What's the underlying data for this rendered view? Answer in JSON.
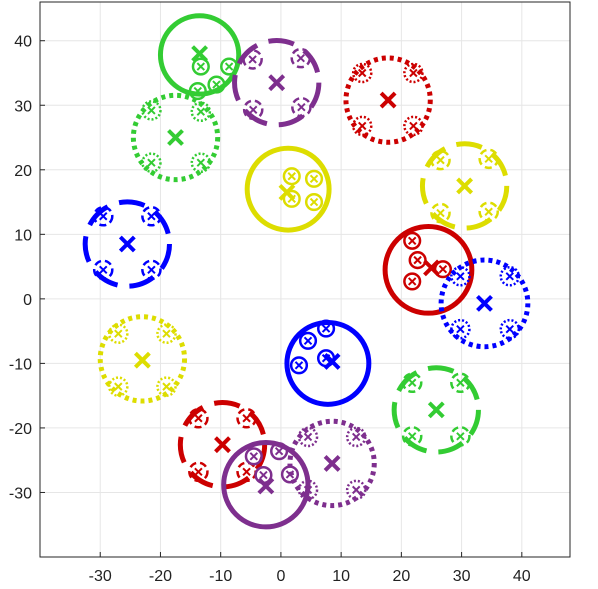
{
  "chart_data": {
    "type": "scatter",
    "title": "",
    "xlabel": "",
    "ylabel": "",
    "xlim": [
      -40,
      48
    ],
    "ylim": [
      -40,
      46
    ],
    "xticks": [
      -30,
      -20,
      -10,
      0,
      10,
      20,
      30,
      40
    ],
    "yticks": [
      -30,
      -20,
      -10,
      0,
      10,
      20,
      30,
      40
    ],
    "xtick_labels": [
      "-30",
      "-20",
      "-10",
      "0",
      "10",
      "20",
      "30",
      "40"
    ],
    "ytick_labels": [
      "-30",
      "-20",
      "-10",
      "0",
      "10",
      "20",
      "30",
      "40"
    ],
    "grid": true,
    "legend": "none",
    "colors": {
      "green": "#33cc33",
      "purple": "#7e2f8e",
      "red": "#cc0000",
      "yellow": "#dddd00",
      "blue": "#0000ff"
    },
    "clusters": [
      {
        "color": "green",
        "style": "solid",
        "center": [
          -13.5,
          37.8
        ],
        "radius": 6.5,
        "marker": [
          -13.5,
          38.0
        ],
        "sub": [
          {
            "center": [
              -13.3,
              36.0
            ],
            "radius": 1.3
          },
          {
            "center": [
              -10.7,
              33.2
            ],
            "radius": 1.3
          },
          {
            "center": [
              -8.6,
              36.0
            ],
            "radius": 1.3
          },
          {
            "center": [
              -13.8,
              32.2
            ],
            "radius": 1.3
          }
        ],
        "sub_style": "solid"
      },
      {
        "color": "purple",
        "style": "dashed",
        "center": [
          -0.7,
          33.5
        ],
        "radius": 7.0,
        "marker": [
          -0.7,
          33.5
        ],
        "sub": [
          {
            "center": [
              -4.7,
              37.1
            ],
            "radius": 1.5
          },
          {
            "center": [
              3.3,
              37.3
            ],
            "radius": 1.5
          },
          {
            "center": [
              -4.6,
              29.3
            ],
            "radius": 1.5
          },
          {
            "center": [
              3.4,
              29.7
            ],
            "radius": 1.5
          }
        ],
        "sub_style": "dashed"
      },
      {
        "color": "red",
        "style": "dotted",
        "center": [
          17.8,
          30.8
        ],
        "radius": 7.0,
        "marker": [
          17.8,
          30.8
        ],
        "sub": [
          {
            "center": [
              13.5,
              35.0
            ],
            "radius": 1.5
          },
          {
            "center": [
              22.0,
              35.0
            ],
            "radius": 1.5
          },
          {
            "center": [
              13.5,
              26.8
            ],
            "radius": 1.5
          },
          {
            "center": [
              22.0,
              26.8
            ],
            "radius": 1.5
          }
        ],
        "sub_style": "dotted"
      },
      {
        "color": "green",
        "style": "dotted",
        "center": [
          -17.5,
          25.0
        ],
        "radius": 7.0,
        "marker": [
          -17.5,
          25.0
        ],
        "sub": [
          {
            "center": [
              -21.5,
              29.2
            ],
            "radius": 1.5
          },
          {
            "center": [
              -13.3,
              29.0
            ],
            "radius": 1.5
          },
          {
            "center": [
              -21.5,
              21.1
            ],
            "radius": 1.5
          },
          {
            "center": [
              -13.3,
              21.1
            ],
            "radius": 1.5
          }
        ],
        "sub_style": "dotted"
      },
      {
        "color": "yellow",
        "style": "solid",
        "center": [
          1.2,
          17.0
        ],
        "radius": 6.8,
        "marker": [
          1.0,
          16.5
        ],
        "sub": [
          {
            "center": [
              1.8,
              19.0
            ],
            "radius": 1.3
          },
          {
            "center": [
              5.5,
              18.6
            ],
            "radius": 1.3
          },
          {
            "center": [
              1.8,
              15.5
            ],
            "radius": 1.3
          },
          {
            "center": [
              5.5,
              15.0
            ],
            "radius": 1.3
          }
        ],
        "sub_style": "solid"
      },
      {
        "color": "yellow",
        "style": "dashed",
        "center": [
          30.5,
          17.5
        ],
        "radius": 7.0,
        "marker": [
          30.5,
          17.5
        ],
        "sub": [
          {
            "center": [
              26.5,
              21.5
            ],
            "radius": 1.5
          },
          {
            "center": [
              34.5,
              21.7
            ],
            "radius": 1.5
          },
          {
            "center": [
              26.5,
              13.3
            ],
            "radius": 1.5
          },
          {
            "center": [
              34.5,
              13.5
            ],
            "radius": 1.5
          }
        ],
        "sub_style": "dashed"
      },
      {
        "color": "blue",
        "style": "dashed",
        "center": [
          -25.5,
          8.5
        ],
        "radius": 7.0,
        "marker": [
          -25.5,
          8.5
        ],
        "sub": [
          {
            "center": [
              -29.5,
              12.8
            ],
            "radius": 1.5
          },
          {
            "center": [
              -21.5,
              12.8
            ],
            "radius": 1.5
          },
          {
            "center": [
              -29.5,
              4.5
            ],
            "radius": 1.5
          },
          {
            "center": [
              -21.5,
              4.5
            ],
            "radius": 1.5
          }
        ],
        "sub_style": "dashed"
      },
      {
        "color": "red",
        "style": "solid",
        "center": [
          24.5,
          4.5
        ],
        "radius": 7.2,
        "marker": [
          25.0,
          4.8
        ],
        "sub": [
          {
            "center": [
              21.8,
              9.0
            ],
            "radius": 1.3
          },
          {
            "center": [
              22.7,
              6.0
            ],
            "radius": 1.3
          },
          {
            "center": [
              21.8,
              2.7
            ],
            "radius": 1.3
          },
          {
            "center": [
              26.9,
              4.6
            ],
            "radius": 1.3
          }
        ],
        "sub_style": "solid"
      },
      {
        "color": "blue",
        "style": "dotted",
        "center": [
          33.8,
          -0.7
        ],
        "radius": 7.2,
        "marker": [
          33.8,
          -0.7
        ],
        "sub": [
          {
            "center": [
              29.8,
              3.5
            ],
            "radius": 1.5
          },
          {
            "center": [
              38.0,
              3.5
            ],
            "radius": 1.5
          },
          {
            "center": [
              29.8,
              -4.7
            ],
            "radius": 1.5
          },
          {
            "center": [
              38.0,
              -4.7
            ],
            "radius": 1.5
          }
        ],
        "sub_style": "dotted"
      },
      {
        "color": "yellow",
        "style": "dotted",
        "center": [
          -23.0,
          -9.3
        ],
        "radius": 7.0,
        "marker": [
          -23.0,
          -9.5
        ],
        "sub": [
          {
            "center": [
              -27.0,
              -5.4
            ],
            "radius": 1.5
          },
          {
            "center": [
              -19.0,
              -5.4
            ],
            "radius": 1.5
          },
          {
            "center": [
              -27.0,
              -13.6
            ],
            "radius": 1.5
          },
          {
            "center": [
              -19.0,
              -13.6
            ],
            "radius": 1.5
          }
        ],
        "sub_style": "dotted"
      },
      {
        "color": "blue",
        "style": "solid",
        "center": [
          7.8,
          -10.0
        ],
        "radius": 6.8,
        "marker": [
          8.5,
          -9.7
        ],
        "sub": [
          {
            "center": [
              4.5,
              -6.5
            ],
            "radius": 1.3
          },
          {
            "center": [
              7.5,
              -4.6
            ],
            "radius": 1.3
          },
          {
            "center": [
              7.5,
              -9.2
            ],
            "radius": 1.3
          },
          {
            "center": [
              3.0,
              -10.3
            ],
            "radius": 1.3
          }
        ],
        "sub_style": "solid"
      },
      {
        "color": "green",
        "style": "dashed",
        "center": [
          25.8,
          -17.2
        ],
        "radius": 7.0,
        "marker": [
          25.8,
          -17.2
        ],
        "sub": [
          {
            "center": [
              21.8,
              -13.0
            ],
            "radius": 1.5
          },
          {
            "center": [
              29.8,
              -13.0
            ],
            "radius": 1.5
          },
          {
            "center": [
              21.8,
              -21.3
            ],
            "radius": 1.5
          },
          {
            "center": [
              29.8,
              -21.3
            ],
            "radius": 1.5
          }
        ],
        "sub_style": "dashed"
      },
      {
        "color": "red",
        "style": "dashed",
        "center": [
          -9.7,
          -22.6
        ],
        "radius": 7.0,
        "marker": [
          -9.7,
          -22.6
        ],
        "sub": [
          {
            "center": [
              -13.7,
              -18.5
            ],
            "radius": 1.5
          },
          {
            "center": [
              -5.7,
              -18.5
            ],
            "radius": 1.5
          },
          {
            "center": [
              -13.7,
              -26.8
            ],
            "radius": 1.5
          },
          {
            "center": [
              -5.7,
              -26.8
            ],
            "radius": 1.5
          }
        ],
        "sub_style": "dashed"
      },
      {
        "color": "purple",
        "style": "dotted",
        "center": [
          8.5,
          -25.5
        ],
        "radius": 7.0,
        "marker": [
          8.5,
          -25.5
        ],
        "sub": [
          {
            "center": [
              4.5,
              -21.4
            ],
            "radius": 1.5
          },
          {
            "center": [
              12.5,
              -21.4
            ],
            "radius": 1.5
          },
          {
            "center": [
              4.5,
              -29.6
            ],
            "radius": 1.5
          },
          {
            "center": [
              12.5,
              -29.6
            ],
            "radius": 1.5
          }
        ],
        "sub_style": "dotted"
      },
      {
        "color": "purple",
        "style": "solid",
        "center": [
          -2.5,
          -28.8
        ],
        "radius": 7.0,
        "marker": [
          -2.5,
          -29.0
        ],
        "sub": [
          {
            "center": [
              -4.5,
              -24.4
            ],
            "radius": 1.3
          },
          {
            "center": [
              -0.3,
              -23.6
            ],
            "radius": 1.3
          },
          {
            "center": [
              -2.9,
              -27.3
            ],
            "radius": 1.3
          },
          {
            "center": [
              1.5,
              -27.2
            ],
            "radius": 1.3
          }
        ],
        "sub_style": "solid"
      }
    ]
  }
}
